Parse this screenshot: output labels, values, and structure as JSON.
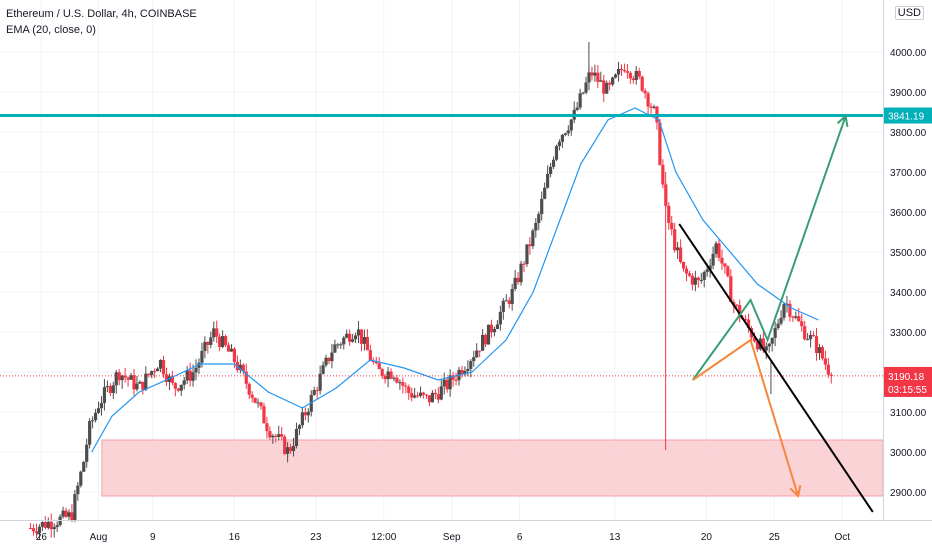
{
  "legend": {
    "line1": "Ethereum / U.S. Dollar, 4h, COINBASE",
    "line2": "EMA (20, close, 0)"
  },
  "currency": "USD",
  "colors": {
    "up": "#4d4d4d",
    "down": "#f23645",
    "ema": "#2196f3",
    "resistance": "#00b0b9",
    "trend": "#000000",
    "bull_path": "#3a9e74",
    "bear_path": "#f5873d",
    "zone_fill": "#f9c8cd",
    "zone_border": "#f7a2ab",
    "price_label": "#f23645"
  },
  "chart_data": {
    "type": "candlestick",
    "symbol": "ETH/USD",
    "timeframe": "4h",
    "exchange": "COINBASE",
    "ylim": [
      2830,
      4130
    ],
    "y_ticks": [
      2900,
      3000,
      3100,
      3200,
      3300,
      3400,
      3500,
      3600,
      3700,
      3800,
      3900,
      4000
    ],
    "y_tick_labels": [
      "2900.00",
      "3000.00",
      "3100.00",
      "3200.00",
      "3300.00",
      "3400.00",
      "3500.00",
      "3600.00",
      "3700.00",
      "3800.00",
      "3900.00",
      "4000.00"
    ],
    "x_ticks": [
      "26",
      "Aug",
      "9",
      "16",
      "23",
      "12:00",
      "Sep",
      "6",
      "13",
      "20",
      "25",
      "Oct"
    ],
    "price_path": [
      [
        0.0,
        2810
      ],
      [
        0.6,
        2840
      ],
      [
        0.8,
        2990
      ],
      [
        0.85,
        3050
      ],
      [
        1.0,
        3120
      ],
      [
        1.3,
        3200
      ],
      [
        1.6,
        3160
      ],
      [
        1.9,
        3230
      ],
      [
        2.1,
        3160
      ],
      [
        2.4,
        3200
      ],
      [
        2.7,
        3300
      ],
      [
        3.0,
        3230
      ],
      [
        3.25,
        3150
      ],
      [
        3.5,
        3060
      ],
      [
        3.8,
        3000
      ],
      [
        4.1,
        3120
      ],
      [
        4.45,
        3260
      ],
      [
        4.8,
        3310
      ],
      [
        5.1,
        3200
      ],
      [
        5.35,
        3200
      ],
      [
        5.55,
        3150
      ],
      [
        5.85,
        3130
      ],
      [
        6.15,
        3170
      ],
      [
        6.45,
        3230
      ],
      [
        6.75,
        3300
      ],
      [
        7.1,
        3400
      ],
      [
        7.45,
        3570
      ],
      [
        7.75,
        3780
      ],
      [
        8.0,
        3840
      ],
      [
        8.25,
        3950
      ],
      [
        8.5,
        3900
      ],
      [
        8.75,
        3970
      ],
      [
        9.0,
        3920
      ],
      [
        9.2,
        3840
      ],
      [
        9.35,
        3600
      ],
      [
        9.6,
        3450
      ],
      [
        9.85,
        3420
      ],
      [
        10.1,
        3520
      ],
      [
        10.35,
        3370
      ],
      [
        10.6,
        3300
      ],
      [
        10.85,
        3240
      ],
      [
        11.1,
        3380
      ],
      [
        11.35,
        3310
      ],
      [
        11.55,
        3270
      ],
      [
        11.8,
        3190
      ]
    ],
    "ema_path": [
      [
        0.9,
        3000
      ],
      [
        1.2,
        3090
      ],
      [
        1.6,
        3150
      ],
      [
        2.0,
        3180
      ],
      [
        2.5,
        3220
      ],
      [
        3.0,
        3220
      ],
      [
        3.5,
        3150
      ],
      [
        4.0,
        3110
      ],
      [
        4.5,
        3160
      ],
      [
        5.0,
        3230
      ],
      [
        5.5,
        3210
      ],
      [
        6.0,
        3180
      ],
      [
        6.5,
        3200
      ],
      [
        7.0,
        3280
      ],
      [
        7.4,
        3400
      ],
      [
        7.75,
        3560
      ],
      [
        8.1,
        3720
      ],
      [
        8.5,
        3830
      ],
      [
        8.9,
        3860
      ],
      [
        9.25,
        3830
      ],
      [
        9.5,
        3700
      ],
      [
        9.9,
        3580
      ],
      [
        10.3,
        3500
      ],
      [
        10.7,
        3420
      ],
      [
        11.2,
        3360
      ],
      [
        11.6,
        3330
      ]
    ],
    "x_tick_positions": [
      0.16,
      1.0,
      1.8,
      3.0,
      4.2,
      5.2,
      6.2,
      7.2,
      8.6,
      9.95,
      10.95,
      11.95
    ],
    "current_price": 3190.18,
    "current_price_label": "3190.18",
    "countdown": "03:15:55",
    "resistance_level": 3841.19,
    "resistance_label": "3841.19",
    "support_zone": {
      "from": 2890,
      "to": 3030
    },
    "trendline": {
      "start": [
        9.55,
        3570
      ],
      "end": [
        12.4,
        2850
      ]
    },
    "bull_projection": [
      [
        9.75,
        3180
      ],
      [
        10.6,
        3380
      ],
      [
        10.85,
        3280
      ],
      [
        12.0,
        3840
      ]
    ],
    "bear_projection": [
      [
        9.75,
        3180
      ],
      [
        10.6,
        3280
      ],
      [
        11.3,
        2890
      ]
    ],
    "xlim": [
      -0.45,
      12.55
    ]
  }
}
